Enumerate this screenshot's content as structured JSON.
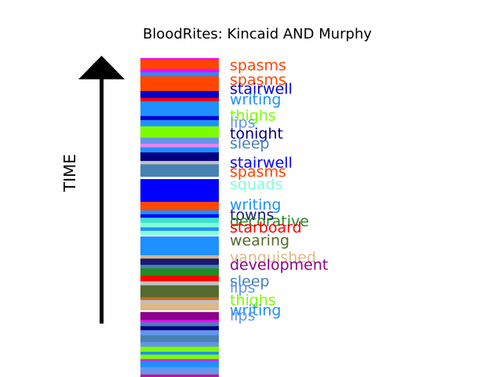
{
  "chart_data": {
    "type": "bar",
    "title": "BloodRites: Kincaid AND Murphy",
    "axis_label": "TIME",
    "stripes": [
      {
        "color": "#ff00ff",
        "value": 0.15
      },
      {
        "color": "#ff4500",
        "value": 0.8
      },
      {
        "color": "#ff00ff",
        "value": 0.3
      },
      {
        "color": "#1e90ff",
        "value": 0.35
      },
      {
        "color": "#ff4500",
        "value": 1.3
      },
      {
        "color": "#0000cd",
        "value": 0.6
      },
      {
        "color": "#ff0000",
        "value": 0.3
      },
      {
        "color": "#1e90ff",
        "value": 1.3
      },
      {
        "color": "#0000cd",
        "value": 0.35
      },
      {
        "color": "#1e90ff",
        "value": 0.55
      },
      {
        "color": "#7cfc00",
        "value": 1.0
      },
      {
        "color": "#6495ed",
        "value": 0.55
      },
      {
        "color": "#ee82ee",
        "value": 0.3
      },
      {
        "color": "#1e90ff",
        "value": 0.45
      },
      {
        "color": "#000080",
        "value": 0.75
      },
      {
        "color": "#c0c0c0",
        "value": 0.3
      },
      {
        "color": "#4682b4",
        "value": 1.1
      },
      {
        "color": "#ffffff",
        "value": 0.2
      },
      {
        "color": "#0000ff",
        "value": 2.0
      },
      {
        "color": "#ff4500",
        "value": 0.75
      },
      {
        "color": "#1e90ff",
        "value": 0.35
      },
      {
        "color": "#0000ff",
        "value": 0.3
      },
      {
        "color": "#40e0d0",
        "value": 0.45
      },
      {
        "color": "#7fffd4",
        "value": 0.4
      },
      {
        "color": "#1e90ff",
        "value": 0.3
      },
      {
        "color": "#7fffd4",
        "value": 0.35
      },
      {
        "color": "#ffffff",
        "value": 0.15
      },
      {
        "color": "#1e90ff",
        "value": 1.65
      },
      {
        "color": "#d2b48c",
        "value": 0.3
      },
      {
        "color": "#191970",
        "value": 0.55
      },
      {
        "color": "#4682b4",
        "value": 0.3
      },
      {
        "color": "#228b22",
        "value": 0.65
      },
      {
        "color": "#ff0000",
        "value": 0.5
      },
      {
        "color": "#c0c0c0",
        "value": 0.35
      },
      {
        "color": "#556b2f",
        "value": 1.05
      },
      {
        "color": "#d2691e",
        "value": 0.25
      },
      {
        "color": "#c0c0c0",
        "value": 0.25
      },
      {
        "color": "#deb887",
        "value": 0.65
      },
      {
        "color": "#ffffff",
        "value": 0.15
      },
      {
        "color": "#8b008b",
        "value": 0.7
      },
      {
        "color": "#ff00ff",
        "value": 0.2
      },
      {
        "color": "#4682b4",
        "value": 0.35
      },
      {
        "color": "#000080",
        "value": 0.35
      },
      {
        "color": "#6495ed",
        "value": 0.45
      },
      {
        "color": "#4682b4",
        "value": 0.6
      },
      {
        "color": "#6495ed",
        "value": 0.4
      },
      {
        "color": "#7cfc00",
        "value": 0.45
      },
      {
        "color": "#1e90ff",
        "value": 0.25
      },
      {
        "color": "#7cfc00",
        "value": 0.4
      },
      {
        "color": "#ff00ff",
        "value": 0.15
      },
      {
        "color": "#1e90ff",
        "value": 0.55
      },
      {
        "color": "#6495ed",
        "value": 0.65
      },
      {
        "color": "#c71585",
        "value": 0.35
      }
    ],
    "labels": [
      {
        "text": "spasms",
        "color": "#ff4500",
        "pos": 0.6
      },
      {
        "text": "spasms",
        "color": "#ff4500",
        "pos": 1.85
      },
      {
        "text": "stairwell",
        "color": "#0000cd",
        "pos": 2.65
      },
      {
        "text": "writing",
        "color": "#1e90ff",
        "pos": 3.6
      },
      {
        "text": "thighs",
        "color": "#7cfc00",
        "pos": 5.0
      },
      {
        "text": "lips",
        "color": "#6495ed",
        "pos": 5.65
      },
      {
        "text": "tonight",
        "color": "#000080",
        "pos": 6.6
      },
      {
        "text": "sleep",
        "color": "#4682b4",
        "pos": 7.45
      },
      {
        "text": "stairwell",
        "color": "#0000ff",
        "pos": 9.15
      },
      {
        "text": "spasms",
        "color": "#ff4500",
        "pos": 9.95
      },
      {
        "text": "squads",
        "color": "#7fffd4",
        "pos": 11.05
      },
      {
        "text": "writing",
        "color": "#1e90ff",
        "pos": 12.85
      },
      {
        "text": "towns",
        "color": "#191970",
        "pos": 13.75
      },
      {
        "text": "decorative",
        "color": "#228b22",
        "pos": 14.3
      },
      {
        "text": "starboard",
        "color": "#ff0000",
        "pos": 14.85
      },
      {
        "text": "wearing",
        "color": "#556b2f",
        "pos": 16.0
      },
      {
        "text": "vanquished",
        "color": "#deb887",
        "pos": 17.5
      },
      {
        "text": "development",
        "color": "#8b008b",
        "pos": 18.15
      },
      {
        "text": "sleep",
        "color": "#4682b4",
        "pos": 19.6
      },
      {
        "text": "lips",
        "color": "#6495ed",
        "pos": 20.15
      },
      {
        "text": "thighs",
        "color": "#7cfc00",
        "pos": 21.25
      },
      {
        "text": "writing",
        "color": "#1e90ff",
        "pos": 22.15
      },
      {
        "text": "lips",
        "color": "#6495ed",
        "pos": 22.6
      }
    ],
    "total": 23.3,
    "arrow_color": "#000000"
  }
}
